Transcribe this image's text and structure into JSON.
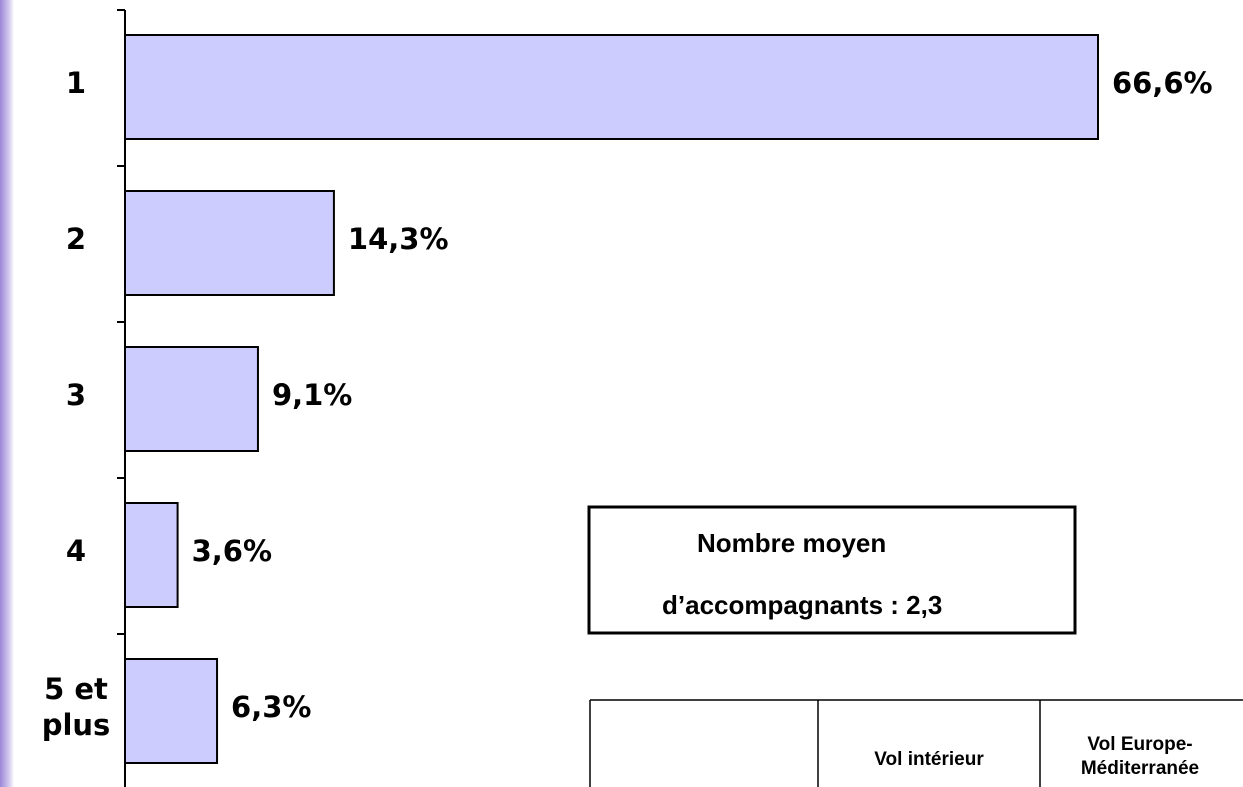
{
  "chart_data": {
    "type": "bar",
    "orientation": "horizontal",
    "categories": [
      "1",
      "2",
      "3",
      "4",
      "5 et plus"
    ],
    "values": [
      66.6,
      14.3,
      9.1,
      3.6,
      6.3
    ],
    "value_labels": [
      "66,6%",
      "14,3%",
      "9,1%",
      "3,6%",
      "6,3%"
    ],
    "color": "#ccccff",
    "annotation": [
      "Nombre moyen",
      "d’accompagnants : 2,3"
    ]
  },
  "table": {
    "header": [
      "Vol intérieur",
      "Vol Europe-Méditerranée"
    ]
  }
}
